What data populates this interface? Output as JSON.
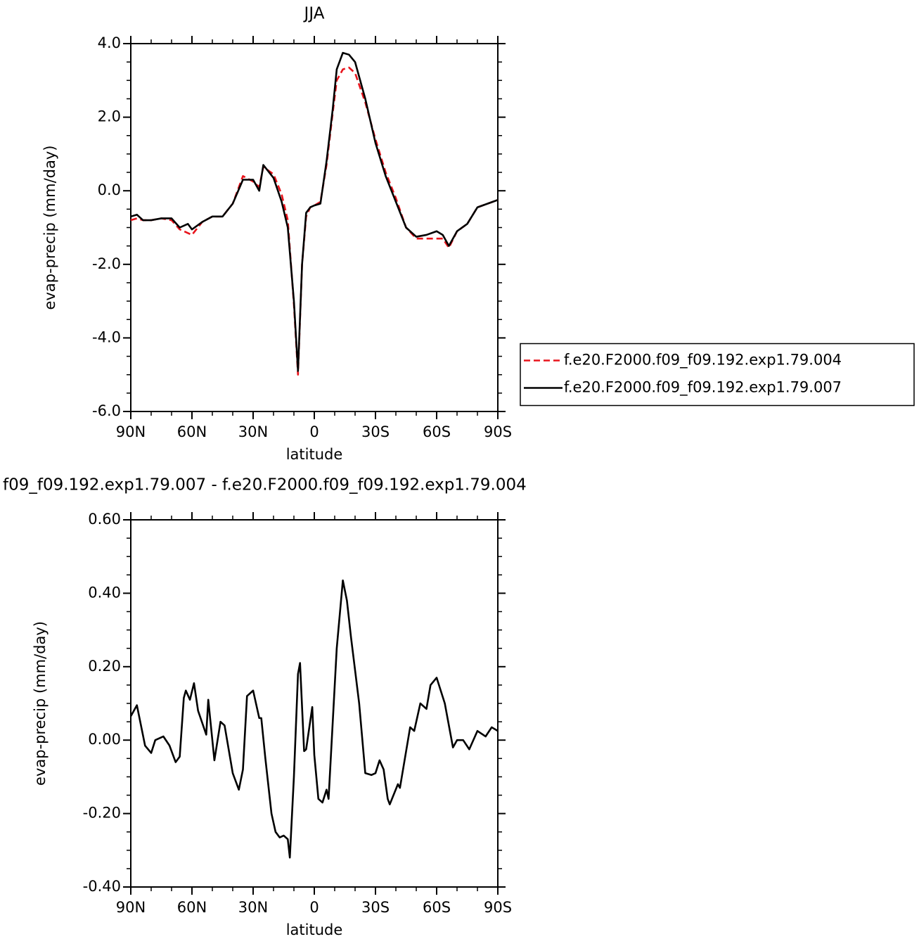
{
  "chart_data": [
    {
      "type": "line",
      "title": "JJA",
      "xlabel": "latitude",
      "ylabel": "evap-precip (mm/day)",
      "x": [
        90,
        87,
        84,
        80,
        75,
        70,
        66,
        62,
        60,
        55,
        50,
        45,
        40,
        35,
        30,
        27,
        25,
        20,
        16,
        13,
        10,
        8,
        6,
        4,
        2,
        0,
        -3,
        -6,
        -9,
        -11,
        -14,
        -17,
        -20,
        -25,
        -30,
        -35,
        -40,
        -45,
        -50,
        -55,
        -60,
        -63,
        -66,
        -70,
        -75,
        -80,
        -85,
        -90
      ],
      "series": [
        {
          "name": "f.e20.F2000.f09_f09.192.exp1.79.004",
          "color": "#e8141c",
          "linestyle": "dashed",
          "values": [
            -0.8,
            -0.75,
            -0.8,
            -0.8,
            -0.75,
            -0.8,
            -1.05,
            -1.15,
            -1.2,
            -0.85,
            -0.7,
            -0.7,
            -0.35,
            0.4,
            0.25,
            0.1,
            0.65,
            0.45,
            -0.1,
            -0.8,
            -3.1,
            -5.0,
            -2.0,
            -0.7,
            -0.45,
            -0.4,
            -0.3,
            0.7,
            2.1,
            3.0,
            3.3,
            3.35,
            3.2,
            2.4,
            1.4,
            0.5,
            -0.2,
            -1.0,
            -1.3,
            -1.3,
            -1.3,
            -1.3,
            -1.55,
            -1.1,
            -0.9,
            -0.45,
            -0.35,
            -0.25
          ]
        },
        {
          "name": "f.e20.F2000.f09_f09.192.exp1.79.007",
          "color": "#000000",
          "linestyle": "solid",
          "values": [
            -0.7,
            -0.65,
            -0.8,
            -0.8,
            -0.75,
            -0.75,
            -1.0,
            -0.9,
            -1.05,
            -0.85,
            -0.7,
            -0.7,
            -0.35,
            0.3,
            0.3,
            0.0,
            0.7,
            0.35,
            -0.3,
            -1.0,
            -3.0,
            -4.9,
            -2.0,
            -0.6,
            -0.45,
            -0.4,
            -0.35,
            0.8,
            2.2,
            3.3,
            3.75,
            3.7,
            3.5,
            2.5,
            1.3,
            0.4,
            -0.3,
            -1.0,
            -1.25,
            -1.2,
            -1.1,
            -1.2,
            -1.5,
            -1.1,
            -0.9,
            -0.45,
            -0.35,
            -0.25
          ]
        }
      ],
      "xlim": [
        90,
        -90
      ],
      "xticks": [
        {
          "value": 90,
          "label": "90N"
        },
        {
          "value": 60,
          "label": "60N"
        },
        {
          "value": 30,
          "label": "30N"
        },
        0,
        {
          "value": -30,
          "label": "30S"
        },
        {
          "value": -60,
          "label": "60S"
        },
        {
          "value": -90,
          "label": "90S"
        }
      ],
      "ylim": [
        -6,
        4
      ],
      "yticks": [
        {
          "value": -6,
          "label": "-6.0"
        },
        {
          "value": -4,
          "label": "-4.0"
        },
        {
          "value": -2,
          "label": "-2.0"
        },
        {
          "value": 0,
          "label": "0.0"
        },
        {
          "value": 2,
          "label": "2.0"
        },
        {
          "value": 4,
          "label": "4.0"
        }
      ],
      "legend": "right"
    },
    {
      "type": "line",
      "title": "f09_f09.192.exp1.79.007 - f.e20.F2000.f09_f09.192.exp1.79.004",
      "xlabel": "latitude",
      "ylabel": "evap-precip (mm/day)",
      "x": [
        90,
        87,
        83,
        80,
        78,
        74,
        71,
        68,
        66,
        64,
        63,
        61,
        59,
        57,
        53,
        52,
        49,
        46,
        44,
        40,
        37,
        35,
        33,
        30,
        27,
        26,
        24,
        21,
        19,
        17,
        15,
        13,
        12,
        10,
        8,
        7,
        5,
        4,
        1,
        0,
        -2,
        -4,
        -6,
        -7,
        -11,
        -14,
        -16,
        -18,
        -22,
        -25,
        -28,
        -30,
        -32,
        -34,
        -36,
        -37,
        -41,
        -42,
        -47,
        -49,
        -52,
        -55,
        -57,
        -60,
        -64,
        -68,
        -70,
        -73,
        -76,
        -80,
        -84,
        -87,
        -90
      ],
      "series": [
        {
          "color": "#000000",
          "linestyle": "solid",
          "values": [
            0.065,
            0.095,
            -0.015,
            -0.035,
            0.0,
            0.01,
            -0.015,
            -0.06,
            -0.045,
            0.115,
            0.135,
            0.11,
            0.155,
            0.08,
            0.015,
            0.11,
            -0.055,
            0.05,
            0.04,
            -0.09,
            -0.135,
            -0.08,
            0.12,
            0.135,
            0.06,
            0.06,
            -0.05,
            -0.2,
            -0.25,
            -0.265,
            -0.26,
            -0.27,
            -0.32,
            -0.1,
            0.18,
            0.21,
            -0.03,
            -0.025,
            0.09,
            -0.04,
            -0.16,
            -0.17,
            -0.135,
            -0.16,
            0.25,
            0.435,
            0.38,
            0.28,
            0.1,
            -0.09,
            -0.095,
            -0.09,
            -0.055,
            -0.08,
            -0.16,
            -0.175,
            -0.12,
            -0.13,
            0.035,
            0.025,
            0.1,
            0.085,
            0.15,
            0.17,
            0.1,
            -0.02,
            0.0,
            0.0,
            -0.025,
            0.025,
            0.01,
            0.035,
            0.025
          ]
        }
      ],
      "xlim": [
        90,
        -90
      ],
      "xticks": [
        {
          "value": 90,
          "label": "90N"
        },
        {
          "value": 60,
          "label": "60N"
        },
        {
          "value": 30,
          "label": "30N"
        },
        0,
        {
          "value": -30,
          "label": "30S"
        },
        {
          "value": -60,
          "label": "60S"
        },
        {
          "value": -90,
          "label": "90S"
        }
      ],
      "ylim": [
        -0.4,
        0.6
      ],
      "yticks": [
        {
          "value": -0.4,
          "label": "-0.40"
        },
        {
          "value": -0.2,
          "label": "-0.20"
        },
        {
          "value": 0,
          "label": "0.00"
        },
        {
          "value": 0.2,
          "label": "0.20"
        },
        {
          "value": 0.4,
          "label": "0.40"
        },
        {
          "value": 0.6,
          "label": "0.60"
        }
      ]
    }
  ]
}
